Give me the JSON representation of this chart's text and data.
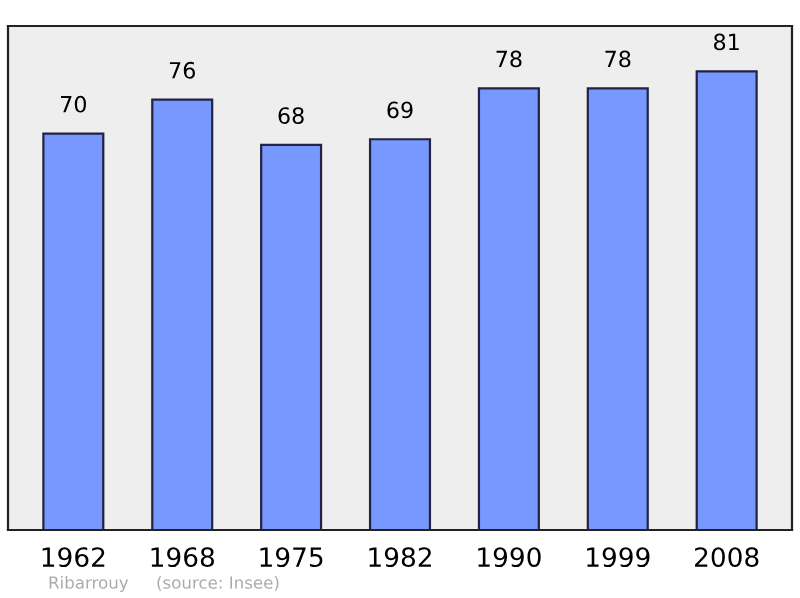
{
  "chart_data": {
    "type": "bar",
    "categories": [
      "1962",
      "1968",
      "1975",
      "1982",
      "1990",
      "1999",
      "2008"
    ],
    "values": [
      70,
      76,
      68,
      69,
      78,
      78,
      81
    ],
    "color": "#7799ff",
    "ylim": [
      0,
      89
    ],
    "tick_labels": "x",
    "data_labels": true,
    "grid": false,
    "annotations": [
      "Ribarrouy",
      "(source: Insee)"
    ]
  }
}
